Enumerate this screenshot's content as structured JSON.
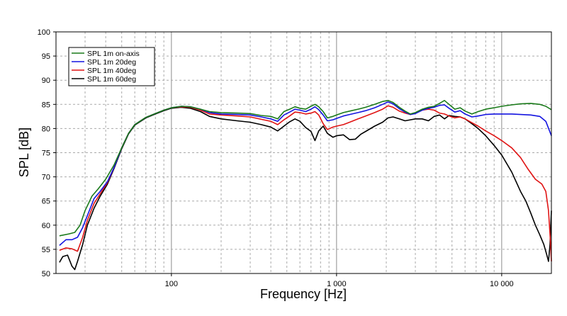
{
  "chart_data": {
    "type": "line",
    "xlabel": "Frequency [Hz]",
    "ylabel": "SPL [dB]",
    "xscale": "log",
    "xlim": [
      20,
      20000
    ],
    "ylim": [
      50,
      100
    ],
    "grid": true,
    "legend_position": "top-left",
    "x_ticks": [
      {
        "value": 100,
        "label": "100"
      },
      {
        "value": 1000,
        "label": "1 000"
      },
      {
        "value": 10000,
        "label": "10 000"
      }
    ],
    "y_ticks": [
      {
        "value": 50,
        "label": "50"
      },
      {
        "value": 55,
        "label": "55"
      },
      {
        "value": 60,
        "label": "60"
      },
      {
        "value": 65,
        "label": "65"
      },
      {
        "value": 70,
        "label": "70"
      },
      {
        "value": 75,
        "label": "75"
      },
      {
        "value": 80,
        "label": "80"
      },
      {
        "value": 85,
        "label": "85"
      },
      {
        "value": 90,
        "label": "90"
      },
      {
        "value": 95,
        "label": "95"
      },
      {
        "value": 100,
        "label": "100"
      }
    ],
    "series": [
      {
        "name": "SPL 1m on-axis",
        "color": "#1a7a1a",
        "points": [
          [
            21,
            57.8
          ],
          [
            24,
            58.2
          ],
          [
            26,
            58.5
          ],
          [
            28,
            60
          ],
          [
            30,
            63
          ],
          [
            33,
            66
          ],
          [
            36,
            67.5
          ],
          [
            40,
            69.5
          ],
          [
            45,
            72.5
          ],
          [
            50,
            76
          ],
          [
            55,
            79
          ],
          [
            60,
            80.8
          ],
          [
            70,
            82.3
          ],
          [
            80,
            83.1
          ],
          [
            90,
            83.8
          ],
          [
            100,
            84.3
          ],
          [
            115,
            84.6
          ],
          [
            130,
            84.5
          ],
          [
            150,
            84
          ],
          [
            170,
            83.5
          ],
          [
            200,
            83.3
          ],
          [
            250,
            83.2
          ],
          [
            300,
            83.1
          ],
          [
            350,
            82.7
          ],
          [
            400,
            82.5
          ],
          [
            440,
            82
          ],
          [
            480,
            83.5
          ],
          [
            520,
            84
          ],
          [
            560,
            84.5
          ],
          [
            600,
            84.2
          ],
          [
            650,
            84
          ],
          [
            700,
            84.6
          ],
          [
            740,
            85
          ],
          [
            780,
            84.5
          ],
          [
            830,
            83.5
          ],
          [
            880,
            82.2
          ],
          [
            950,
            82.5
          ],
          [
            1000,
            82.8
          ],
          [
            1100,
            83.3
          ],
          [
            1200,
            83.6
          ],
          [
            1350,
            84
          ],
          [
            1500,
            84.4
          ],
          [
            1700,
            85
          ],
          [
            1900,
            85.6
          ],
          [
            2050,
            85.8
          ],
          [
            2200,
            85.4
          ],
          [
            2400,
            84.4
          ],
          [
            2600,
            83.6
          ],
          [
            2800,
            83
          ],
          [
            3000,
            83.3
          ],
          [
            3300,
            84
          ],
          [
            3600,
            84.4
          ],
          [
            3900,
            84.6
          ],
          [
            4200,
            85.2
          ],
          [
            4500,
            85.8
          ],
          [
            4800,
            85
          ],
          [
            5200,
            84
          ],
          [
            5600,
            84.3
          ],
          [
            6000,
            83.6
          ],
          [
            6600,
            83
          ],
          [
            7200,
            83.5
          ],
          [
            8000,
            84
          ],
          [
            9000,
            84.3
          ],
          [
            10000,
            84.6
          ],
          [
            11500,
            84.9
          ],
          [
            13000,
            85.1
          ],
          [
            15000,
            85.2
          ],
          [
            17000,
            85
          ],
          [
            18500,
            84.6
          ],
          [
            20000,
            83.9
          ]
        ]
      },
      {
        "name": "SPL 1m 20deg",
        "color": "#1414e0",
        "points": [
          [
            21,
            55.8
          ],
          [
            23,
            57
          ],
          [
            25,
            57
          ],
          [
            27,
            57.5
          ],
          [
            29,
            59.5
          ],
          [
            31,
            62
          ],
          [
            34,
            65.5
          ],
          [
            37,
            67
          ],
          [
            41,
            69
          ],
          [
            45,
            72
          ],
          [
            50,
            76
          ],
          [
            55,
            79
          ],
          [
            60,
            80.8
          ],
          [
            70,
            82.3
          ],
          [
            80,
            83.1
          ],
          [
            90,
            83.8
          ],
          [
            100,
            84.3
          ],
          [
            115,
            84.6
          ],
          [
            130,
            84.5
          ],
          [
            150,
            84
          ],
          [
            170,
            83.3
          ],
          [
            200,
            83
          ],
          [
            250,
            82.9
          ],
          [
            300,
            82.8
          ],
          [
            350,
            82.4
          ],
          [
            400,
            82
          ],
          [
            440,
            81.5
          ],
          [
            480,
            82.8
          ],
          [
            520,
            83.4
          ],
          [
            560,
            84
          ],
          [
            600,
            83.8
          ],
          [
            650,
            83.5
          ],
          [
            700,
            84
          ],
          [
            740,
            84.5
          ],
          [
            780,
            83.9
          ],
          [
            830,
            82.8
          ],
          [
            880,
            81.6
          ],
          [
            950,
            81.8
          ],
          [
            1000,
            82.1
          ],
          [
            1100,
            82.6
          ],
          [
            1200,
            82.9
          ],
          [
            1350,
            83.3
          ],
          [
            1500,
            83.7
          ],
          [
            1700,
            84.3
          ],
          [
            1900,
            85
          ],
          [
            2050,
            85.5
          ],
          [
            2200,
            85.1
          ],
          [
            2400,
            84.1
          ],
          [
            2600,
            83.4
          ],
          [
            2800,
            82.9
          ],
          [
            3000,
            83.1
          ],
          [
            3300,
            83.8
          ],
          [
            3600,
            84.2
          ],
          [
            3900,
            84.4
          ],
          [
            4200,
            84.8
          ],
          [
            4500,
            84.9
          ],
          [
            4800,
            84.2
          ],
          [
            5200,
            83.4
          ],
          [
            5600,
            83.7
          ],
          [
            6000,
            83
          ],
          [
            6600,
            82.4
          ],
          [
            7200,
            82.6
          ],
          [
            8000,
            82.9
          ],
          [
            9000,
            83
          ],
          [
            10000,
            83
          ],
          [
            11500,
            83
          ],
          [
            13000,
            82.9
          ],
          [
            15000,
            82.8
          ],
          [
            17000,
            82.5
          ],
          [
            18500,
            81.5
          ],
          [
            20000,
            78.5
          ]
        ]
      },
      {
        "name": "SPL 1m 40deg",
        "color": "#e01414",
        "points": [
          [
            21,
            54.8
          ],
          [
            23,
            55.3
          ],
          [
            25,
            55.1
          ],
          [
            27,
            54.6
          ],
          [
            29,
            57.5
          ],
          [
            31,
            61
          ],
          [
            34,
            64.5
          ],
          [
            37,
            66.5
          ],
          [
            41,
            68.8
          ],
          [
            45,
            72
          ],
          [
            50,
            76
          ],
          [
            55,
            79
          ],
          [
            60,
            80.8
          ],
          [
            70,
            82.3
          ],
          [
            80,
            83.1
          ],
          [
            90,
            83.8
          ],
          [
            100,
            84.3
          ],
          [
            115,
            84.5
          ],
          [
            130,
            84.4
          ],
          [
            150,
            83.8
          ],
          [
            170,
            83
          ],
          [
            200,
            82.8
          ],
          [
            250,
            82.6
          ],
          [
            300,
            82.4
          ],
          [
            350,
            81.9
          ],
          [
            400,
            81.5
          ],
          [
            440,
            80.8
          ],
          [
            480,
            81.8
          ],
          [
            520,
            82.6
          ],
          [
            560,
            83.4
          ],
          [
            600,
            83.3
          ],
          [
            650,
            83
          ],
          [
            700,
            83.2
          ],
          [
            740,
            83.5
          ],
          [
            780,
            82.8
          ],
          [
            830,
            81
          ],
          [
            880,
            79.8
          ],
          [
            950,
            80.3
          ],
          [
            1000,
            80.5
          ],
          [
            1100,
            80.8
          ],
          [
            1200,
            81.3
          ],
          [
            1350,
            82
          ],
          [
            1500,
            82.6
          ],
          [
            1700,
            83.3
          ],
          [
            1900,
            84
          ],
          [
            2050,
            84.7
          ],
          [
            2200,
            84.4
          ],
          [
            2400,
            83.6
          ],
          [
            2600,
            83.2
          ],
          [
            2800,
            82.9
          ],
          [
            3000,
            83.2
          ],
          [
            3300,
            83.8
          ],
          [
            3600,
            84
          ],
          [
            3900,
            83.8
          ],
          [
            4200,
            83.2
          ],
          [
            4500,
            83
          ],
          [
            4800,
            82.6
          ],
          [
            5200,
            82.2
          ],
          [
            5600,
            82.4
          ],
          [
            6000,
            82
          ],
          [
            6600,
            81.2
          ],
          [
            7200,
            80.5
          ],
          [
            8000,
            79.5
          ],
          [
            9000,
            78.5
          ],
          [
            10000,
            77.5
          ],
          [
            11500,
            76
          ],
          [
            13000,
            74
          ],
          [
            14500,
            71.5
          ],
          [
            16000,
            69.5
          ],
          [
            17500,
            68.5
          ],
          [
            18500,
            67
          ],
          [
            19200,
            63
          ],
          [
            19700,
            57
          ],
          [
            20000,
            52.5
          ]
        ]
      },
      {
        "name": "SPL 1m 60deg",
        "color": "#000000",
        "points": [
          [
            21,
            52.3
          ],
          [
            22,
            53.5
          ],
          [
            23.5,
            53.8
          ],
          [
            25,
            51.5
          ],
          [
            26,
            50.8
          ],
          [
            27,
            52.5
          ],
          [
            29,
            56
          ],
          [
            31,
            60
          ],
          [
            34,
            63.5
          ],
          [
            37,
            66
          ],
          [
            41,
            68.5
          ],
          [
            45,
            71.8
          ],
          [
            50,
            75.8
          ],
          [
            55,
            78.9
          ],
          [
            60,
            80.7
          ],
          [
            70,
            82.2
          ],
          [
            80,
            83
          ],
          [
            90,
            83.7
          ],
          [
            100,
            84.2
          ],
          [
            115,
            84.4
          ],
          [
            130,
            84.2
          ],
          [
            150,
            83.5
          ],
          [
            170,
            82.5
          ],
          [
            200,
            82
          ],
          [
            250,
            81.6
          ],
          [
            300,
            81.3
          ],
          [
            350,
            80.8
          ],
          [
            400,
            80.3
          ],
          [
            440,
            79.5
          ],
          [
            480,
            80.5
          ],
          [
            520,
            81.4
          ],
          [
            560,
            82
          ],
          [
            600,
            81.5
          ],
          [
            650,
            80.2
          ],
          [
            700,
            79.4
          ],
          [
            740,
            77.5
          ],
          [
            780,
            79.5
          ],
          [
            830,
            80.5
          ],
          [
            880,
            79
          ],
          [
            950,
            78.2
          ],
          [
            1000,
            78.5
          ],
          [
            1100,
            78.7
          ],
          [
            1200,
            77.7
          ],
          [
            1300,
            77.8
          ],
          [
            1400,
            78.8
          ],
          [
            1500,
            79.4
          ],
          [
            1700,
            80.5
          ],
          [
            1900,
            81.3
          ],
          [
            2050,
            82.2
          ],
          [
            2200,
            82.4
          ],
          [
            2400,
            82
          ],
          [
            2600,
            81.6
          ],
          [
            2800,
            81.8
          ],
          [
            3000,
            82
          ],
          [
            3300,
            82
          ],
          [
            3600,
            81.6
          ],
          [
            3900,
            82.5
          ],
          [
            4200,
            82.8
          ],
          [
            4500,
            82
          ],
          [
            4800,
            82.7
          ],
          [
            5200,
            82.5
          ],
          [
            5600,
            82.4
          ],
          [
            6000,
            82
          ],
          [
            6600,
            81
          ],
          [
            7200,
            80
          ],
          [
            8000,
            78.5
          ],
          [
            9000,
            76.5
          ],
          [
            10000,
            74.5
          ],
          [
            11500,
            71
          ],
          [
            13000,
            67
          ],
          [
            14000,
            65
          ],
          [
            15000,
            62.5
          ],
          [
            16000,
            60
          ],
          [
            17000,
            58
          ],
          [
            18000,
            56
          ],
          [
            18700,
            54
          ],
          [
            19200,
            52.5
          ],
          [
            19600,
            56
          ],
          [
            20000,
            63
          ]
        ]
      }
    ]
  }
}
